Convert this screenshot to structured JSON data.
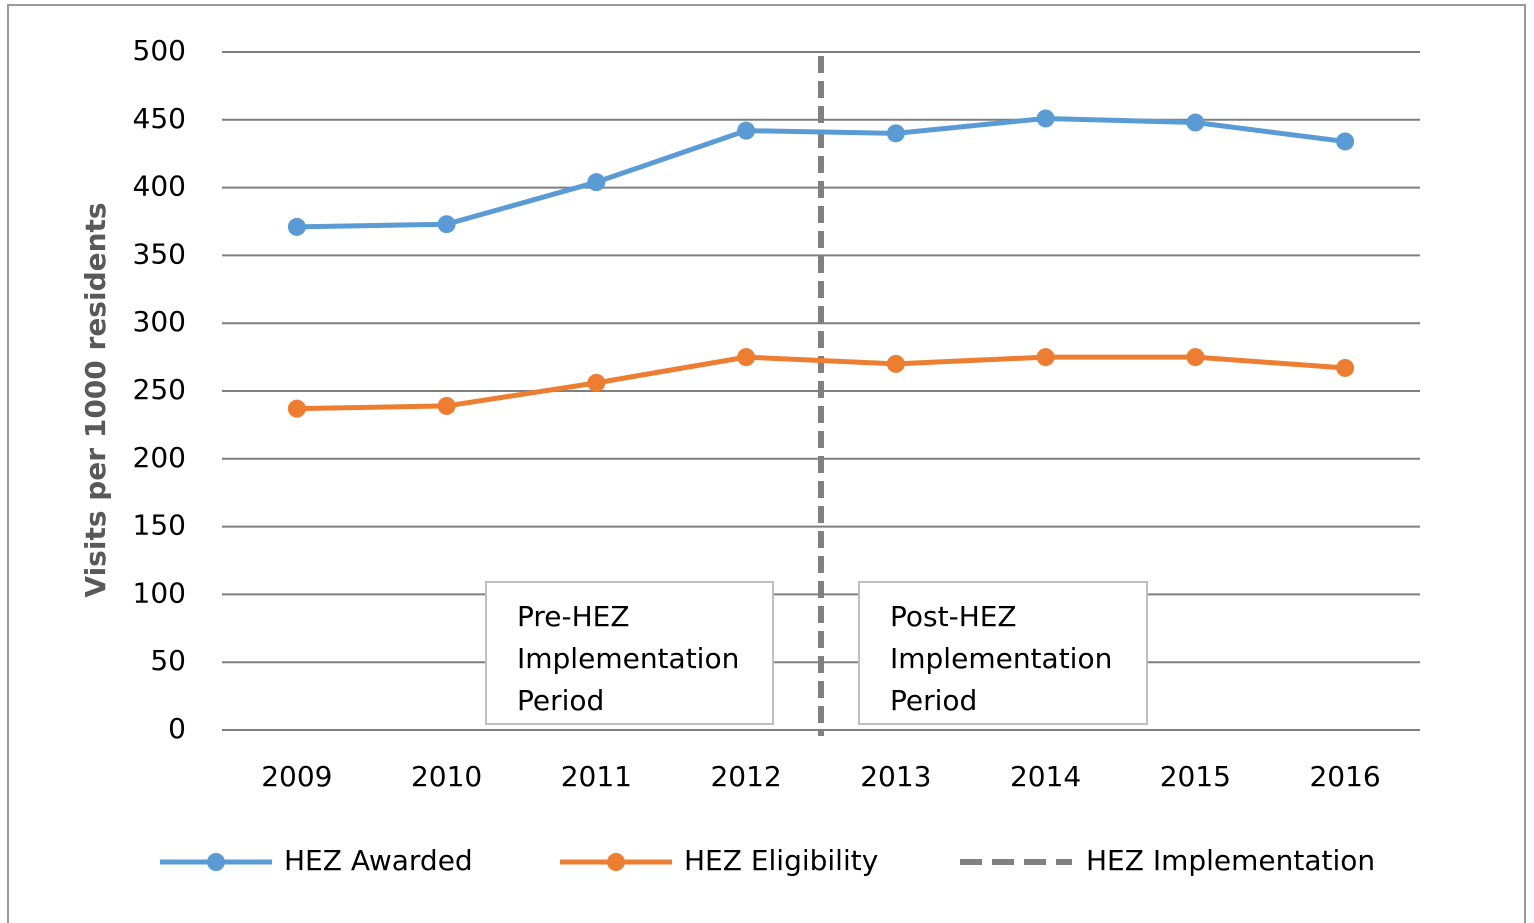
{
  "chart_data": {
    "type": "line",
    "y_label": "Visits per 1000 residents",
    "categories": [
      "2009",
      "2010",
      "2011",
      "2012",
      "2013",
      "2014",
      "2015",
      "2016"
    ],
    "series": [
      {
        "name": "HEZ Awarded",
        "color": "#5b9bd5",
        "values": [
          371,
          373,
          404,
          442,
          440,
          451,
          448,
          434
        ]
      },
      {
        "name": "HEZ Eligibility",
        "color": "#ed7d31",
        "values": [
          237,
          239,
          256,
          275,
          270,
          275,
          275,
          267
        ]
      }
    ],
    "reference_line": {
      "name": "HEZ Implementation",
      "color": "#808080",
      "x_position": 3.5
    },
    "annotations": [
      {
        "lines": [
          "Pre-HEZ",
          "Implementation",
          "Period"
        ]
      },
      {
        "lines": [
          "Post-HEZ",
          "Implementation",
          "Period"
        ]
      }
    ],
    "ylim": [
      0,
      500
    ],
    "yticks": [
      0,
      50,
      100,
      150,
      200,
      250,
      300,
      350,
      400,
      450,
      500
    ],
    "grid": true
  }
}
